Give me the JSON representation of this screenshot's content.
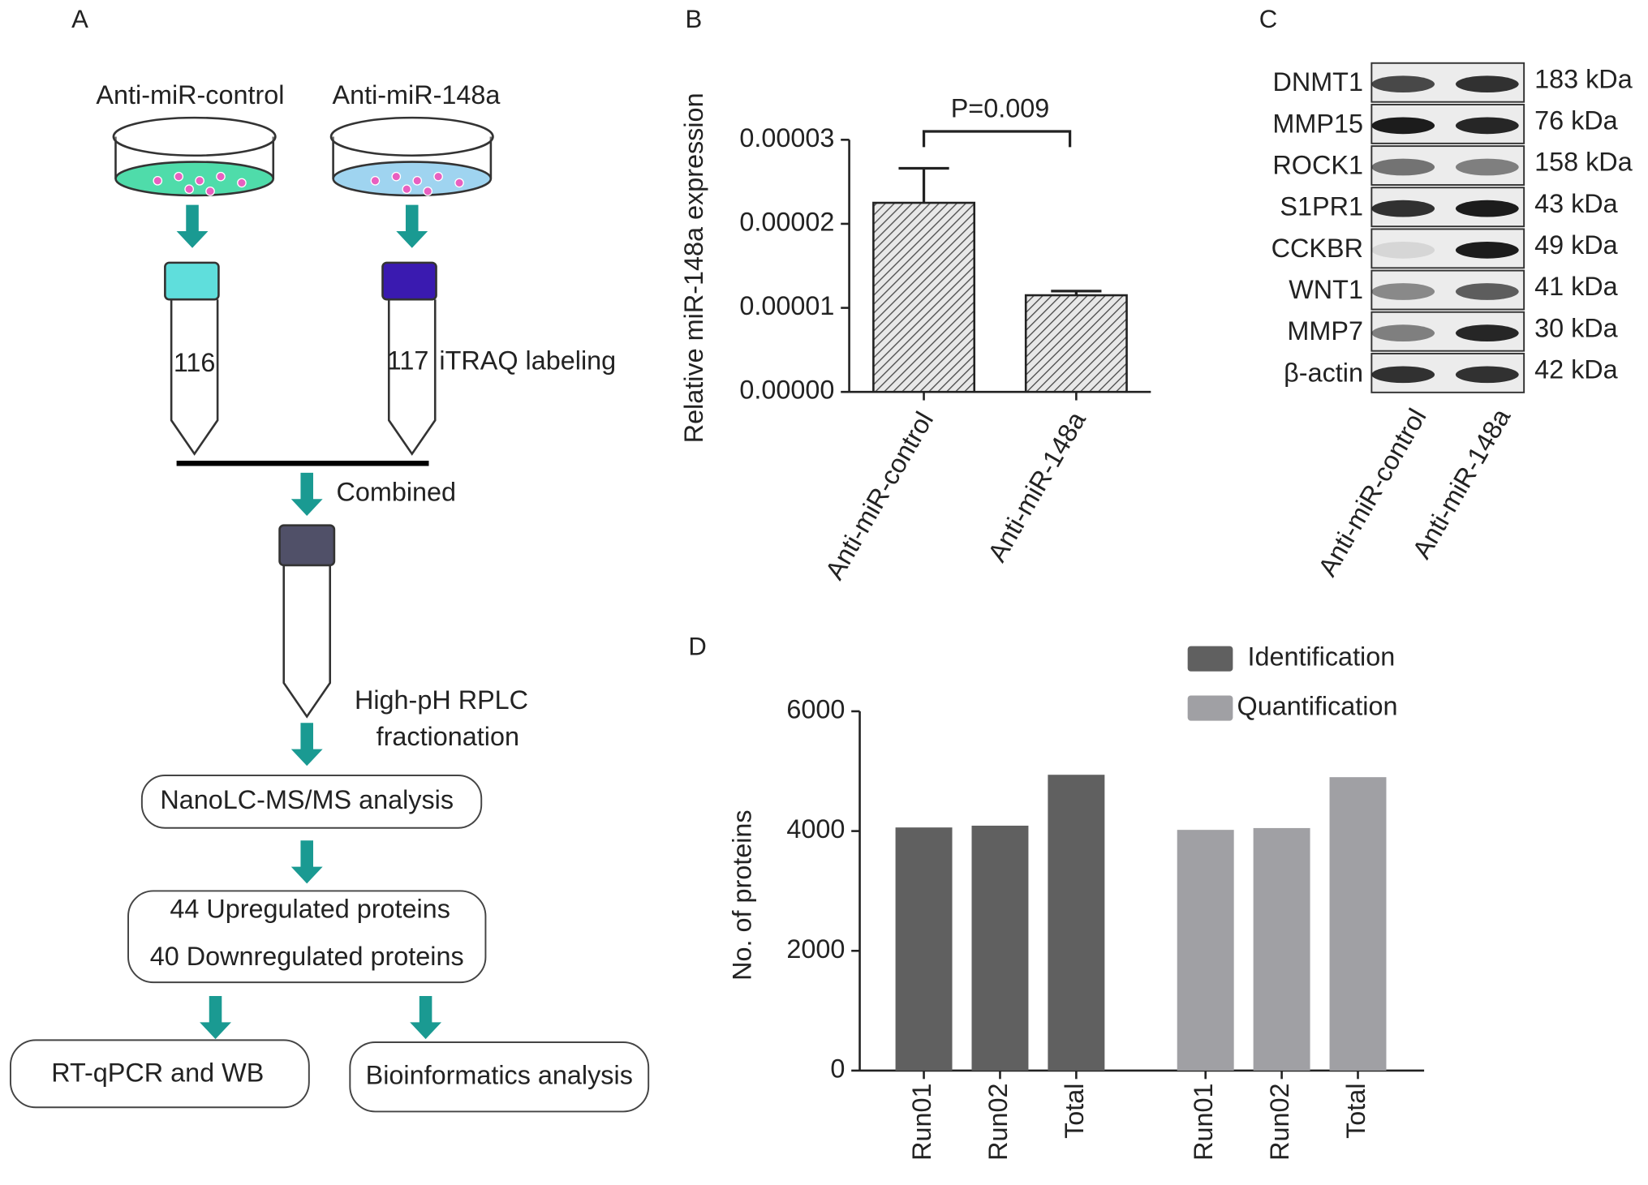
{
  "panel_a": {
    "label": "A",
    "groups": [
      "Anti-miR-control",
      "Anti-miR-148a"
    ],
    "tubes": [
      "116",
      "117"
    ],
    "labeling": "iTRAQ labeling",
    "combined": "Combined",
    "fractionation": [
      "High-pH RPLC",
      "fractionation"
    ],
    "analysis": "NanoLC-MS/MS analysis",
    "results": [
      "44 Upregulated proteins",
      "40 Downregulated proteins"
    ],
    "outputs": [
      "RT-qPCR and WB",
      "Bioinformatics analysis"
    ]
  },
  "panel_c": {
    "label": "C",
    "proteins": [
      "DNMT1",
      "MMP15",
      "ROCK1",
      "S1PR1",
      "CCKBR",
      "WNT1",
      "MMP7",
      "β-actin"
    ],
    "sizes": [
      "183 kDa",
      "76 kDa",
      "158 kDa",
      "43 kDa",
      "49 kDa",
      "41 kDa",
      "30 kDa",
      "42 kDa"
    ],
    "lanes": [
      "Anti-miR-control",
      "Anti-miR-148a"
    ]
  },
  "chart_data": [
    {
      "panel": "B",
      "type": "bar",
      "ylabel": "Relative miR-148a expression",
      "categories": [
        "Anti-miR-control",
        "Anti-miR-148a"
      ],
      "values": [
        2.25e-05,
        1.15e-05
      ],
      "errors": [
        4.1e-06,
        5e-07
      ],
      "ylim": [
        0,
        3e-05
      ],
      "yticks": [
        {
          "value": 0,
          "label": "0.00000"
        },
        {
          "value": 1e-05,
          "label": "0.00001"
        },
        {
          "value": 2e-05,
          "label": "0.00002"
        },
        {
          "value": 3e-05,
          "label": "0.00003"
        }
      ],
      "annotation": "P=0.009"
    },
    {
      "panel": "D",
      "type": "grouped_bar",
      "ylabel": "No. of proteins",
      "categories": [
        "Run01",
        "Run02",
        "Total"
      ],
      "series": [
        {
          "name": "Identification",
          "color": "#606060",
          "values": [
            4060,
            4090,
            4940
          ]
        },
        {
          "name": "Quantification",
          "color": "#a0a0a4",
          "values": [
            4020,
            4050,
            4900
          ]
        }
      ],
      "ylim": [
        0,
        6000
      ],
      "yticks": [
        0,
        2000,
        4000,
        6000
      ]
    }
  ]
}
